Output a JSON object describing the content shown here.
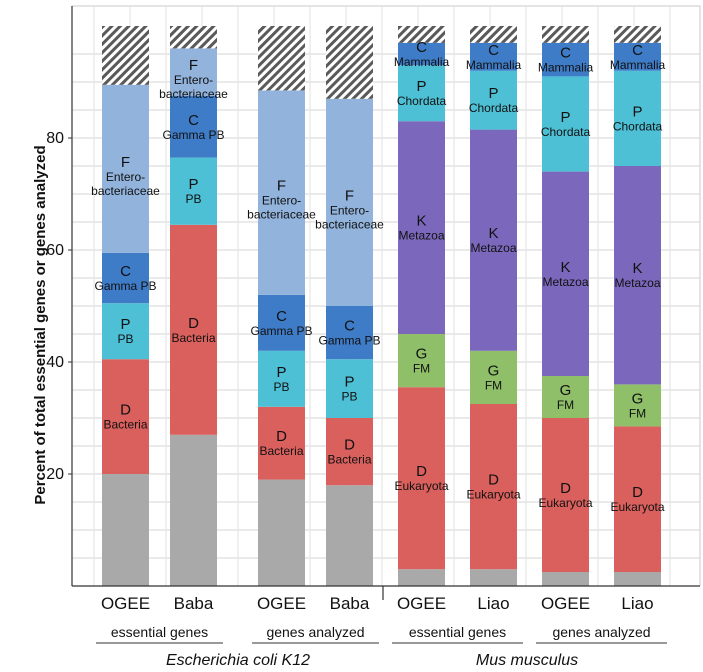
{
  "chart_data": {
    "type": "bar",
    "stacked": true,
    "ylabel": "Percent of total essential genes or genes analyzed",
    "ylim": [
      0,
      100
    ],
    "yticks": [
      "20",
      "40",
      "60",
      "80"
    ],
    "grid": true,
    "colors": {
      "root": "#a9a9a9",
      "hatched": "#5a5a5a",
      "D": "#d9605d",
      "P": "#4ec0d6",
      "C": "#3f7cc7",
      "F": "#92b3dc",
      "G": "#8fbf68",
      "K": "#7b68bc"
    },
    "categories": [
      "OGEE",
      "Baba",
      "OGEE",
      "Baba",
      "OGEE",
      "Liao",
      "OGEE",
      "Liao"
    ],
    "bars": [
      {
        "label": "OGEE",
        "segments": [
          {
            "key": "root",
            "value": 20
          },
          {
            "key": "D",
            "value": 20.5,
            "letter": "D",
            "name": "Bacteria"
          },
          {
            "key": "P",
            "value": 10,
            "letter": "P",
            "name": "PB"
          },
          {
            "key": "C",
            "value": 9,
            "letter": "C",
            "name": "Gamma PB"
          },
          {
            "key": "F",
            "value": 30,
            "letter": "F",
            "name": "Entero-\nbacteriaceae"
          },
          {
            "key": "hatched",
            "value": 10.5
          }
        ]
      },
      {
        "label": "Baba",
        "segments": [
          {
            "key": "root",
            "value": 27
          },
          {
            "key": "D",
            "value": 37.5,
            "letter": "D",
            "name": "Bacteria"
          },
          {
            "key": "P",
            "value": 12,
            "letter": "P",
            "name": "PB"
          },
          {
            "key": "C",
            "value": 11,
            "letter": "C",
            "name": "Gamma PB"
          },
          {
            "key": "F",
            "value": 8.5,
            "letter": "F",
            "name": "Entero-\nbacteriaceae"
          },
          {
            "key": "hatched",
            "value": 4
          }
        ]
      },
      {
        "label": "OGEE",
        "segments": [
          {
            "key": "root",
            "value": 19
          },
          {
            "key": "D",
            "value": 13,
            "letter": "D",
            "name": "Bacteria"
          },
          {
            "key": "P",
            "value": 10,
            "letter": "P",
            "name": "PB"
          },
          {
            "key": "C",
            "value": 10,
            "letter": "C",
            "name": "Gamma PB"
          },
          {
            "key": "F",
            "value": 36.5,
            "letter": "F",
            "name": "Entero-\nbacteriaceae"
          },
          {
            "key": "hatched",
            "value": 11.5
          }
        ]
      },
      {
        "label": "Baba",
        "segments": [
          {
            "key": "root",
            "value": 18
          },
          {
            "key": "D",
            "value": 12,
            "letter": "D",
            "name": "Bacteria"
          },
          {
            "key": "P",
            "value": 10.5,
            "letter": "P",
            "name": "PB"
          },
          {
            "key": "C",
            "value": 9.5,
            "letter": "C",
            "name": "Gamma PB"
          },
          {
            "key": "F",
            "value": 37,
            "letter": "F",
            "name": "Entero-\nbacteriaceae"
          },
          {
            "key": "hatched",
            "value": 13
          }
        ]
      },
      {
        "label": "OGEE",
        "segments": [
          {
            "key": "root",
            "value": 3
          },
          {
            "key": "D",
            "value": 32.5,
            "letter": "D",
            "name": "Eukaryota"
          },
          {
            "key": "G",
            "value": 9.5,
            "letter": "G",
            "name": "FM"
          },
          {
            "key": "K",
            "value": 38,
            "letter": "K",
            "name": "Metazoa"
          },
          {
            "key": "P",
            "value": 10,
            "letter": "P",
            "name": "Chordata"
          },
          {
            "key": "C",
            "value": 4,
            "letter": "C",
            "name": "Mammalia"
          },
          {
            "key": "hatched",
            "value": 3
          }
        ]
      },
      {
        "label": "Liao",
        "segments": [
          {
            "key": "root",
            "value": 3
          },
          {
            "key": "D",
            "value": 29.5,
            "letter": "D",
            "name": "Eukaryota"
          },
          {
            "key": "G",
            "value": 9.5,
            "letter": "G",
            "name": "FM"
          },
          {
            "key": "K",
            "value": 39.5,
            "letter": "K",
            "name": "Metazoa"
          },
          {
            "key": "P",
            "value": 10.5,
            "letter": "P",
            "name": "Chordata"
          },
          {
            "key": "C",
            "value": 5,
            "letter": "C",
            "name": "Mammalia"
          },
          {
            "key": "hatched",
            "value": 3
          }
        ]
      },
      {
        "label": "OGEE",
        "segments": [
          {
            "key": "root",
            "value": 2.5
          },
          {
            "key": "D",
            "value": 27.5,
            "letter": "D",
            "name": "Eukaryota"
          },
          {
            "key": "G",
            "value": 7.5,
            "letter": "G",
            "name": "FM"
          },
          {
            "key": "K",
            "value": 36.5,
            "letter": "K",
            "name": "Metazoa"
          },
          {
            "key": "P",
            "value": 17,
            "letter": "P",
            "name": "Chordata"
          },
          {
            "key": "C",
            "value": 6,
            "letter": "C",
            "name": "Mammalia"
          },
          {
            "key": "hatched",
            "value": 3
          }
        ]
      },
      {
        "label": "Liao",
        "segments": [
          {
            "key": "root",
            "value": 2.5
          },
          {
            "key": "D",
            "value": 26,
            "letter": "D",
            "name": "Eukaryota"
          },
          {
            "key": "G",
            "value": 7.5,
            "letter": "G",
            "name": "FM"
          },
          {
            "key": "K",
            "value": 39,
            "letter": "K",
            "name": "Metazoa"
          },
          {
            "key": "P",
            "value": 17,
            "letter": "P",
            "name": "Chordata"
          },
          {
            "key": "C",
            "value": 5,
            "letter": "C",
            "name": "Mammalia"
          },
          {
            "key": "hatched",
            "value": 3
          }
        ]
      }
    ],
    "groups": [
      {
        "label": "essential genes"
      },
      {
        "label": "genes analyzed"
      },
      {
        "label": "essential genes"
      },
      {
        "label": "genes analyzed"
      }
    ],
    "organisms": [
      {
        "label": "Escherichia coli K12"
      },
      {
        "label": "Mus musculus"
      }
    ]
  }
}
